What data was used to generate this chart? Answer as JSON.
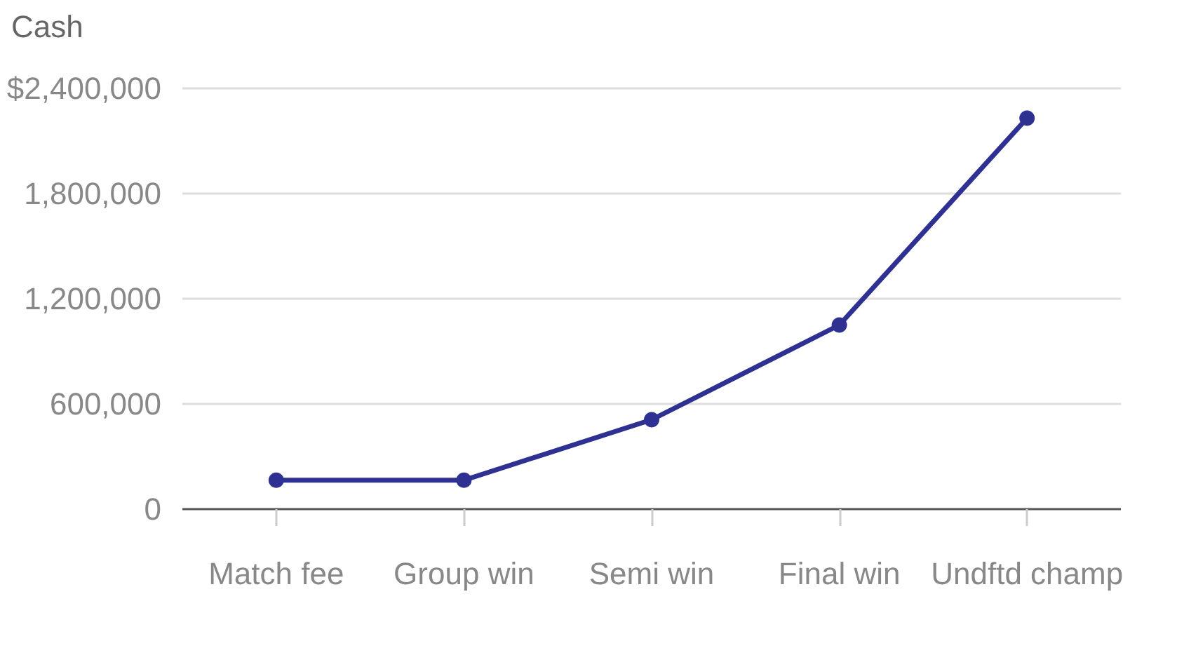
{
  "chart_data": {
    "type": "line",
    "ylabel": "Cash",
    "categories": [
      "Match fee",
      "Group win",
      "Semi win",
      "Final win",
      "Undftd champ"
    ],
    "series": [
      {
        "color": "#2e3192",
        "values": [
          165000,
          165000,
          510000,
          1050000,
          2230000
        ]
      }
    ],
    "ylim": [
      0,
      2400000
    ],
    "yticks": [
      0,
      {
        "value": 600000,
        "label": "600,000"
      },
      {
        "value": 1200000,
        "label": "1,200,000"
      },
      {
        "value": 1800000,
        "label": "1,800,000"
      },
      {
        "value": 2400000,
        "label": "$2,400,000"
      }
    ],
    "grid": "y",
    "marker": "circle",
    "line_style": "solid"
  }
}
